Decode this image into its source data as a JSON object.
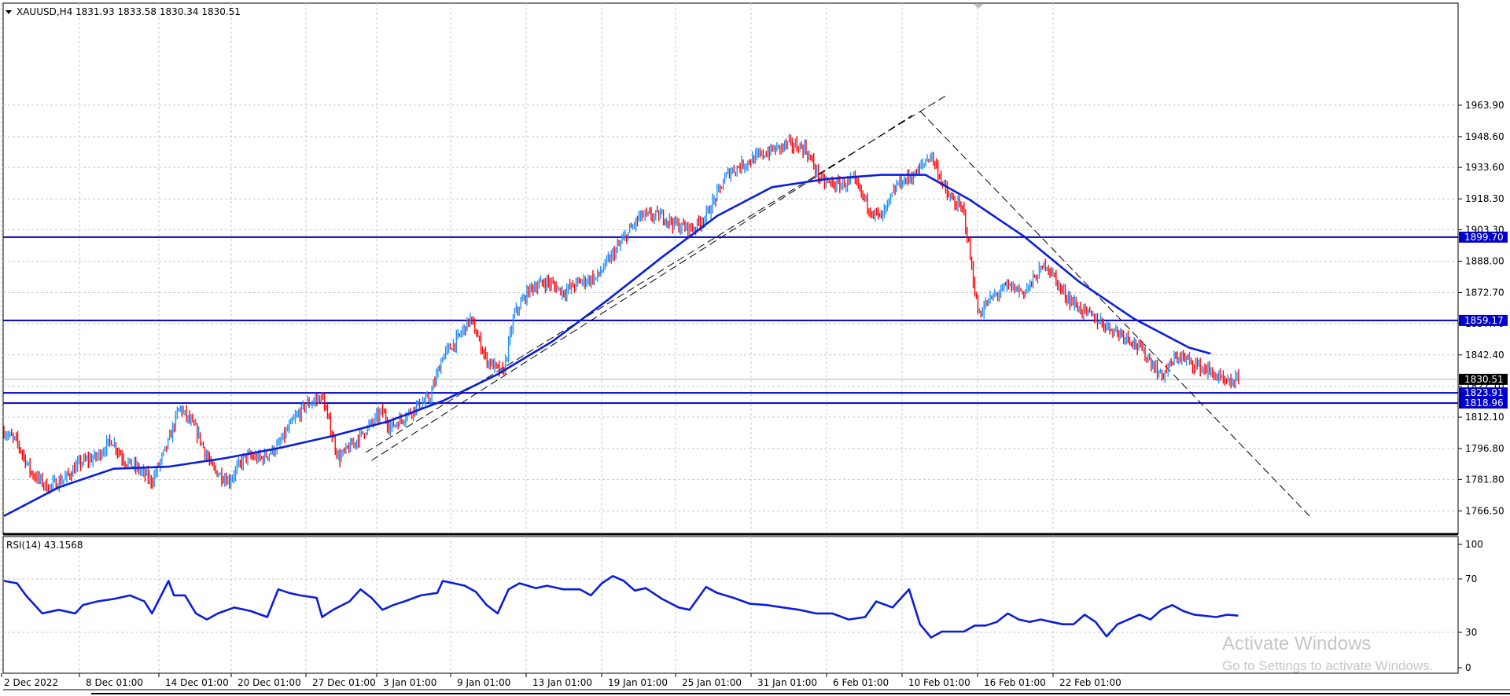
{
  "header": {
    "symbol": "XAUUSD,H4",
    "ohlc": "1831.93 1833.58 1830.34 1830.51"
  },
  "rsi_label": "RSI(14) 43.1568",
  "watermark": {
    "line1": "Activate Windows",
    "line2": "Go to Settings to activate Windows."
  },
  "colors": {
    "background": "#ffffff",
    "grid": "#c8c8c8",
    "bull_candle": "#1e90ff",
    "bear_candle": "#ff0000",
    "moving_average": "#0a1edc",
    "levels": "#0000c8",
    "rsi_line": "#0a1edc",
    "trendlines": "#000000",
    "current_price_bg": "#000000"
  },
  "chart_data": [
    {
      "type": "candlestick",
      "symbol": "XAUUSD",
      "timeframe": "H4",
      "price_axis_ticks": [
        "1963.90",
        "1948.60",
        "1933.60",
        "1918.30",
        "1903.30",
        "1888.00",
        "1872.70",
        "1857.70",
        "1842.40",
        "1827.10",
        "1812.10",
        "1796.80",
        "1781.80",
        "1766.50"
      ],
      "ylim": [
        1760.0,
        1969.0
      ],
      "time_axis_ticks": [
        "2 Dec 2022",
        "8 Dec 01:00",
        "14 Dec 01:00",
        "20 Dec 01:00",
        "27 Dec 01:00",
        "3 Jan 01:00",
        "9 Jan 01:00",
        "13 Jan 01:00",
        "19 Jan 01:00",
        "25 Jan 01:00",
        "31 Jan 01:00",
        "6 Feb 01:00",
        "10 Feb 01:00",
        "16 Feb 01:00",
        "22 Feb 01:00"
      ],
      "current_price": "1830.51",
      "price_labels": [
        {
          "value": "1899.70",
          "color": "#0000c8"
        },
        {
          "value": "1859.17",
          "color": "#0000c8"
        },
        {
          "value": "1823.91",
          "color": "#0000c8"
        },
        {
          "value": "1818.96",
          "color": "#0000c8"
        }
      ],
      "horizontal_levels": [
        1899.7,
        1859.17,
        1823.91,
        1818.96
      ],
      "close_path": {
        "bars": [
          0,
          12,
          25,
          40,
          55,
          70,
          85,
          98,
          110,
          122,
          135,
          150,
          160,
          175,
          190,
          205,
          220,
          235,
          250,
          262,
          275,
          290,
          305,
          318,
          330,
          345,
          352,
          362,
          375,
          388,
          400,
          412,
          425,
          440,
          455,
          465,
          480,
          495,
          510,
          525,
          540,
          560,
          580,
          600,
          615,
          628,
          640,
          660,
          680,
          700,
          715,
          730,
          745,
          760,
          775,
          790,
          800,
          815,
          830,
          845,
          860,
          875,
          888,
          900,
          915,
          930,
          950,
          965,
          980,
          995,
          1010,
          1025,
          1040,
          1055,
          1070,
          1085,
          1100,
          1115,
          1125
        ],
        "values": [
          1805,
          1800,
          1785,
          1778,
          1782,
          1790,
          1793,
          1801,
          1791,
          1787,
          1781,
          1800,
          1817,
          1806,
          1787,
          1781,
          1793,
          1792,
          1798,
          1809,
          1818,
          1822,
          1792,
          1799,
          1806,
          1815,
          1807,
          1811,
          1817,
          1821,
          1842,
          1849,
          1860,
          1840,
          1833,
          1862,
          1875,
          1878,
          1873,
          1878,
          1880,
          1895,
          1910,
          1910,
          1905,
          1904,
          1910,
          1931,
          1937,
          1942,
          1945,
          1943,
          1927,
          1925,
          1927,
          1913,
          1909,
          1926,
          1930,
          1940,
          1920,
          1912,
          1862,
          1870,
          1876,
          1873,
          1887,
          1873,
          1865,
          1860,
          1855,
          1851,
          1843,
          1832,
          1842,
          1838,
          1834,
          1828,
          1830.5
        ]
      },
      "moving_average": {
        "bars": [
          0,
          50,
          100,
          150,
          200,
          250,
          300,
          350,
          400,
          450,
          500,
          550,
          600,
          650,
          700,
          750,
          800,
          840,
          880,
          930,
          980,
          1030,
          1080,
          1100
        ],
        "values": [
          1764,
          1778,
          1787,
          1788,
          1792,
          1797,
          1803,
          1810,
          1820,
          1833,
          1849,
          1869,
          1890,
          1910,
          1924,
          1928,
          1930,
          1930,
          1918,
          1900,
          1878,
          1860,
          1846,
          1843
        ]
      },
      "trendlines": [
        {
          "from": [
            330,
            1795
          ],
          "to": [
            860,
            1969
          ]
        },
        {
          "from": [
            335,
            1791
          ],
          "to": [
            828,
            1959
          ]
        },
        {
          "from": [
            835,
            1961
          ],
          "to": [
            1190,
            1764
          ]
        }
      ]
    },
    {
      "type": "line",
      "indicator": "RSI(14)",
      "value": "43.1568",
      "levels": [
        "100",
        "70",
        "30",
        "0"
      ],
      "ylim": [
        0,
        100
      ],
      "x": [
        0,
        12,
        20,
        35,
        50,
        65,
        72,
        85,
        100,
        115,
        128,
        135,
        150,
        155,
        165,
        175,
        185,
        195,
        210,
        225,
        240,
        250,
        260,
        270,
        285,
        290,
        300,
        315,
        325,
        335,
        345,
        355,
        365,
        380,
        395,
        400,
        410,
        420,
        430,
        440,
        450,
        460,
        470,
        485,
        495,
        510,
        525,
        535,
        545,
        555,
        565,
        575,
        585,
        600,
        615,
        625,
        640,
        650,
        665,
        680,
        695,
        710,
        725,
        740,
        755,
        770,
        785,
        795,
        810,
        825,
        835,
        845,
        855,
        865,
        875,
        885,
        895,
        905,
        915,
        925,
        935,
        945,
        955,
        965,
        975,
        985,
        995,
        1005,
        1015,
        1025,
        1035,
        1045,
        1055,
        1065,
        1075,
        1085,
        1095,
        1105,
        1115,
        1125
      ],
      "y": [
        72,
        70,
        60,
        45,
        48,
        45,
        52,
        55,
        57,
        60,
        55,
        45,
        72,
        60,
        60,
        45,
        40,
        45,
        50,
        47,
        42,
        65,
        62,
        60,
        58,
        42,
        48,
        55,
        65,
        58,
        48,
        52,
        55,
        60,
        62,
        72,
        70,
        68,
        63,
        52,
        45,
        65,
        70,
        66,
        68,
        65,
        65,
        60,
        70,
        76,
        72,
        64,
        66,
        57,
        50,
        48,
        67,
        62,
        58,
        53,
        52,
        50,
        48,
        45,
        45,
        40,
        42,
        55,
        50,
        65,
        36,
        25,
        30,
        30,
        30,
        35,
        35,
        38,
        45,
        40,
        38,
        40,
        38,
        36,
        36,
        44,
        38,
        26,
        36,
        40,
        44,
        40,
        48,
        52,
        47,
        44,
        43,
        42,
        44,
        43.2
      ]
    }
  ]
}
